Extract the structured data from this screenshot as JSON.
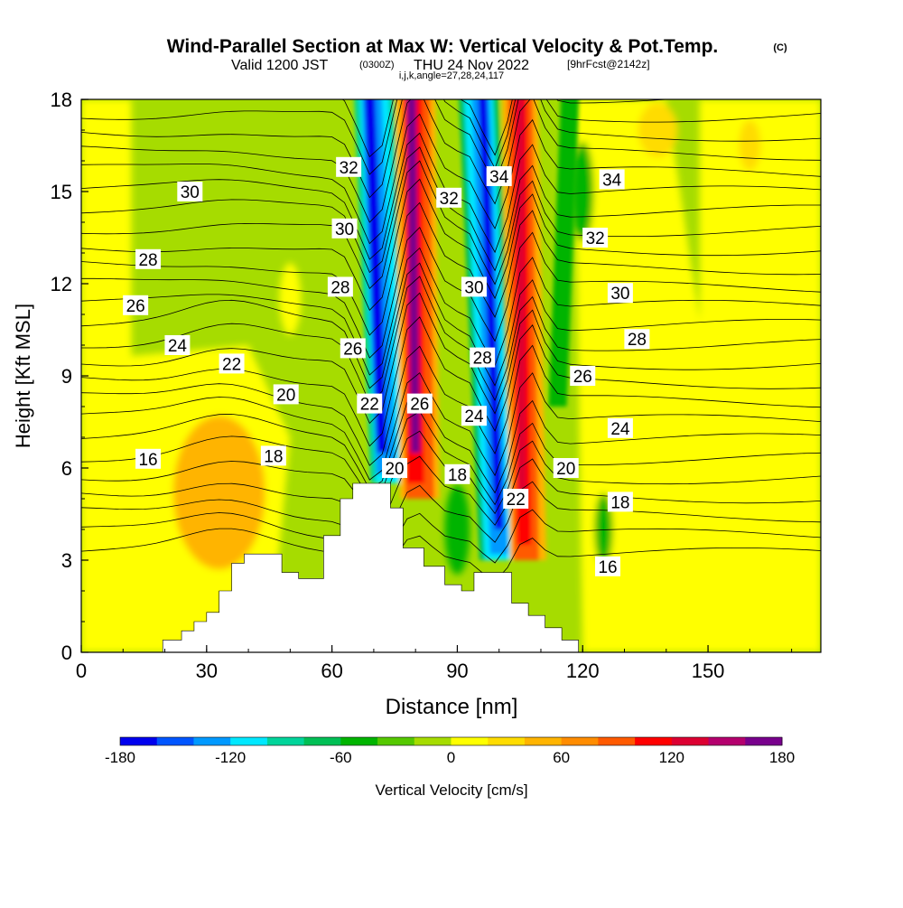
{
  "title": {
    "main": "Wind-Parallel Section at Max W: Vertical Velocity & Pot.Temp.",
    "copyright": "(C)",
    "valid_prefix": "Valid 1200 JST",
    "valid_z": "(0300Z)",
    "valid_suffix": "THU 24 Nov 2022",
    "fcst": "[9hrFcst@2142z]",
    "indices": "i,j,k,angle=27,28,24,117"
  },
  "axes": {
    "xlabel": "Distance [nm]",
    "ylabel": "Height [Kft MSL]",
    "xlim": [
      0,
      177
    ],
    "ylim": [
      0,
      18
    ],
    "xticks": [
      "0",
      "30",
      "60",
      "90",
      "120",
      "150"
    ],
    "yticks": [
      "0",
      "3",
      "6",
      "9",
      "12",
      "15",
      "18"
    ]
  },
  "colorbar": {
    "label": "Vertical Velocity [cm/s]",
    "ticks": [
      "-180",
      "-120",
      "-60",
      "0",
      "60",
      "120",
      "180"
    ],
    "colors": [
      "#0000ee",
      "#0055ff",
      "#0099ff",
      "#00e8ff",
      "#00d49a",
      "#00bf55",
      "#00b400",
      "#55c800",
      "#a6dc00",
      "#ffff00",
      "#ffdc00",
      "#ffb400",
      "#ff8c00",
      "#ff5a00",
      "#ff0000",
      "#dc0032",
      "#b4006e",
      "#78008c"
    ]
  },
  "chart_data": {
    "type": "heatmap",
    "title": "Wind-Parallel Section at Max W: Vertical Velocity & Pot.Temp.",
    "xlabel": "Distance [nm]",
    "ylabel": "Height [Kft MSL]",
    "xlim": [
      0,
      177
    ],
    "ylim": [
      0,
      18
    ],
    "grid": false,
    "filled_field": "Vertical Velocity [cm/s]",
    "filled_range": [
      -180,
      180
    ],
    "filled_features": [
      {
        "kind": "downdraft",
        "x": 69,
        "y_range": [
          5.5,
          18
        ],
        "min_value": -180
      },
      {
        "kind": "updraft",
        "x": 79,
        "y_range": [
          5.5,
          18
        ],
        "max_value": 180
      },
      {
        "kind": "downdraft",
        "x": 99,
        "y_range": [
          3,
          18
        ],
        "min_value": -180
      },
      {
        "kind": "updraft",
        "x": 108,
        "y_range": [
          3,
          18
        ],
        "max_value": 120
      },
      {
        "kind": "updraft",
        "x": 33,
        "y_range": [
          2.5,
          8
        ],
        "max_value": 60
      }
    ],
    "terrain": {
      "x": [
        19.5,
        24,
        27,
        30,
        33,
        36,
        39,
        43,
        48,
        52,
        58,
        62,
        65,
        69,
        74,
        77,
        82,
        87,
        91,
        94,
        98,
        103,
        107,
        111,
        115,
        119
      ],
      "height": [
        0.4,
        0.7,
        1.0,
        1.3,
        2.0,
        2.9,
        3.2,
        3.2,
        2.6,
        2.4,
        3.8,
        5.0,
        5.5,
        5.5,
        4.7,
        3.4,
        2.8,
        2.2,
        2.0,
        2.6,
        2.6,
        1.6,
        1.2,
        0.8,
        0.4,
        0.0
      ]
    },
    "contour_field": "Potential Temperature (C)",
    "contour_labels": [
      {
        "value": "30",
        "x": 26,
        "y": 15.0
      },
      {
        "value": "28",
        "x": 16,
        "y": 12.8
      },
      {
        "value": "26",
        "x": 13,
        "y": 11.3
      },
      {
        "value": "24",
        "x": 23,
        "y": 10.0
      },
      {
        "value": "22",
        "x": 36,
        "y": 9.4
      },
      {
        "value": "20",
        "x": 49,
        "y": 8.4
      },
      {
        "value": "18",
        "x": 46,
        "y": 6.4
      },
      {
        "value": "16",
        "x": 16,
        "y": 6.3
      },
      {
        "value": "32",
        "x": 64,
        "y": 15.8
      },
      {
        "value": "30",
        "x": 63,
        "y": 13.8
      },
      {
        "value": "28",
        "x": 62,
        "y": 11.9
      },
      {
        "value": "26",
        "x": 65,
        "y": 9.9
      },
      {
        "value": "22",
        "x": 69,
        "y": 8.1
      },
      {
        "value": "20",
        "x": 75,
        "y": 6.0
      },
      {
        "value": "26",
        "x": 81,
        "y": 8.1
      },
      {
        "value": "32",
        "x": 88,
        "y": 14.8
      },
      {
        "value": "34",
        "x": 100,
        "y": 15.5
      },
      {
        "value": "30",
        "x": 94,
        "y": 11.9
      },
      {
        "value": "28",
        "x": 96,
        "y": 9.6
      },
      {
        "value": "24",
        "x": 94,
        "y": 7.7
      },
      {
        "value": "18",
        "x": 90,
        "y": 5.8
      },
      {
        "value": "22",
        "x": 104,
        "y": 5.0
      },
      {
        "value": "34",
        "x": 127,
        "y": 15.4
      },
      {
        "value": "32",
        "x": 123,
        "y": 13.5
      },
      {
        "value": "30",
        "x": 129,
        "y": 11.7
      },
      {
        "value": "28",
        "x": 133,
        "y": 10.2
      },
      {
        "value": "26",
        "x": 120,
        "y": 9.0
      },
      {
        "value": "24",
        "x": 129,
        "y": 7.3
      },
      {
        "value": "20",
        "x": 116,
        "y": 6.0
      },
      {
        "value": "18",
        "x": 129,
        "y": 4.9
      },
      {
        "value": "16",
        "x": 126,
        "y": 2.8
      }
    ]
  }
}
